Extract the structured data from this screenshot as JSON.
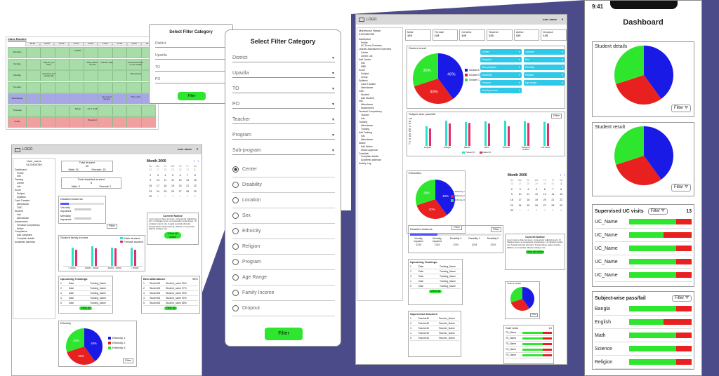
{
  "theme": {
    "purple": "#4b4b8a",
    "green": "#2ee62e",
    "red": "#e82020",
    "blue": "#1a1ae6",
    "teal": "#2ee0d0",
    "pink": "#e0306a"
  },
  "schedule": {
    "title": "Class Routine",
    "times": [
      "08:00",
      "09:00",
      "10:00",
      "11:00",
      "12:00",
      "13:00",
      "14:00",
      "15:00",
      "16:00"
    ],
    "days": [
      "Saturday",
      "Sunday",
      "Monday",
      "Tuesday",
      "Wednesday",
      "Thursday",
      "Friday"
    ],
    "events": [
      "Play as you learn",
      "Overview and systematic",
      "Upazila",
      "Play makes normal",
      "Outdoor play",
      "Social economic on the health",
      "Play-based",
      "Bangl",
      "Art & Craft",
      "Sport and games",
      "Play math",
      "Weekend"
    ]
  },
  "filter_small": {
    "title": "Select Filter Category",
    "fields": [
      "District",
      "Upazila",
      "TO",
      "PO"
    ],
    "button": "Filter"
  },
  "filter_large": {
    "title": "Select Filter Category",
    "selects": [
      "District",
      "Upazila",
      "TO",
      "PO",
      "Teacher",
      "Program",
      "Sub-program"
    ],
    "radios": [
      "Center",
      "Disability",
      "Location",
      "Sex",
      "Ethnicity",
      "Religion",
      "Program",
      "Age Range",
      "Family Income",
      "Dropout"
    ],
    "button": "Filter"
  },
  "dash1": {
    "logo": "LOGO",
    "user": "user name",
    "profile_name": "User_name",
    "profile_id": "0123456789",
    "nav": [
      "Dashboard",
      "Profile",
      "Info",
      "Training",
      "Center",
      "Info",
      "Score",
      "Subject",
      "Syllabus",
      "Cash Transfer",
      "Attendance",
      "CMC",
      "Student",
      "Info",
      "Attendance",
      "Assessment",
      "Terminal Competency",
      "Notice",
      "Compliance",
      "Add complaint",
      "Complain details",
      "Academic calendar"
    ],
    "total_student_label": "Total student",
    "total_student": "30",
    "male": "Male 15",
    "female": "Female: 15",
    "disabled_label": "Total disabled student",
    "disabled_total": "5",
    "disabled_male": "Male 3",
    "disabled_female": "Female 2",
    "calendar_month": "Month 2000",
    "days": [
      "Su",
      "Mo",
      "Tu",
      "We",
      "Th",
      "Fr",
      "Sa"
    ],
    "dates": [
      "26",
      "27",
      "28",
      "29",
      "30",
      "31",
      "1",
      "2",
      "3",
      "4",
      "5",
      "6",
      "7",
      "8",
      "9",
      "10",
      "11",
      "12",
      "13",
      "14",
      "15",
      "16",
      "17",
      "18",
      "19",
      "20",
      "21",
      "22",
      "23",
      "24",
      "25",
      "26",
      "27",
      "28",
      "29",
      "30",
      "1",
      "2",
      "3",
      "4",
      "5",
      "6"
    ],
    "disabled_students": "Disabled students",
    "visually_impaired": "Visually impaired",
    "mentally_impaired": "Mentally impaired",
    "family_income": "Student family income",
    "legend_male": "Male student",
    "legend_female": "Female student",
    "income_cats": [
      "< 10000",
      "10000 - 30000",
      "30000 - 50000",
      "> 50000"
    ],
    "notice_title": "Current Notice",
    "notice_text": "Lorem ipsum dolor sit amet, consectetur adipiscing elit. Ut tristique lorem a consectetur scelerisque. Ut volutpat mauris nisi, feugiat suscipit pharetra. Suspendisse sapien lacinia, efficitur eu imperdiet. Mauris tristique nisi.",
    "view_all": "View all notice",
    "trainings_title": "Upcoming Trainings",
    "training_rows": [
      [
        "1",
        "Date",
        "Training_Name"
      ],
      [
        "2",
        "Date",
        "Training_Name"
      ],
      [
        "3",
        "Date",
        "Training_Name"
      ],
      [
        "4",
        "Date",
        "Training_Name"
      ],
      [
        "5",
        "Date",
        "Training_Name"
      ]
    ],
    "view": "View all",
    "attendance_title": "Best Attendance",
    "attendance_pct": "98%",
    "attendance_rows": [
      [
        "1",
        "StudentID",
        "Student_name",
        "99%"
      ],
      [
        "2",
        "StudentID",
        "Student_name",
        "97%"
      ],
      [
        "3",
        "StudentID",
        "Student_name",
        "95%"
      ],
      [
        "4",
        "StudentID",
        "Student_name",
        "90%"
      ],
      [
        "5",
        "StudentID",
        "Student_name",
        "88%"
      ]
    ],
    "ethnicity_title": "Ethnicity",
    "eth_labels": [
      "Ethnicity 1",
      "Ethnicity 2",
      "Ethnicity 3"
    ],
    "pie_pct": [
      "40%",
      "30%",
      "30%"
    ],
    "filter": "Filter"
  },
  "dash2": {
    "logo": "LOGO",
    "user": "user name",
    "profile_name": "Mahmudul Hasan",
    "profile_id": "0123456789",
    "nav": [
      "Dashboard",
      "Profile",
      "UC Score Overview",
      "Learner Assessment Overview",
      "Center",
      "Center List",
      "Add Center",
      "Info",
      "MBE",
      "Score",
      "Subject",
      "Group",
      "Syllabus",
      "Cash Transfer",
      "Attendance",
      "CMC",
      "Student",
      "Add Student",
      "Info",
      "Attendance",
      "Assessment",
      "Terminal Competency",
      "Teacher",
      "Info",
      "Training",
      "Attendance",
      "Training",
      "Add Training",
      "Info",
      "Attendance",
      "Notice",
      "Add Notice",
      "Notice Approval",
      "Complain",
      "Complain details",
      "Academic calendar",
      "Activity Log"
    ],
    "stats": [
      [
        "Male",
        "123"
      ],
      [
        "Female",
        "123"
      ],
      [
        "Centers",
        "123"
      ],
      [
        "Teacher",
        "123"
      ],
      [
        "Active",
        "123"
      ],
      [
        "Dropout",
        "123"
      ]
    ],
    "student_result": "Student result",
    "grades": [
      "Grade A",
      "Grade B",
      "Grade C"
    ],
    "pie_pct": [
      "40%",
      "30%",
      "30%"
    ],
    "filter_chips": [
      "Center",
      "Location",
      "Program",
      "Sex",
      "Sub-program",
      "Ethnicity",
      "Disability",
      "Religion",
      "Dropout",
      "Age range",
      "Family income"
    ],
    "subject_chart_title": "Subject wise pass/fail",
    "subjects": [
      "English",
      "Bangla",
      "Maths",
      "BGS",
      "Science",
      "Religious Studies",
      "Life Skills"
    ],
    "legend_pass": "Passed %",
    "legend_fail": "Failed %",
    "yticks": [
      "100",
      "90",
      "80",
      "70",
      "60",
      "50",
      "40",
      "30",
      "20",
      "10",
      "0"
    ],
    "ethnicities": "Ethnicities",
    "eth_labels": [
      "Ethnicity 1",
      "Ethnicity 2",
      "Ethnicity 3"
    ],
    "calendar_month": "Month 2000",
    "days": [
      "Su",
      "Mo",
      "Tu",
      "We",
      "Th",
      "Fr",
      "Sa"
    ],
    "dates": [
      "26",
      "27",
      "28",
      "29",
      "30",
      "31",
      "1",
      "2",
      "3",
      "4",
      "5",
      "6",
      "7",
      "8",
      "9",
      "10",
      "11",
      "12",
      "13",
      "14",
      "15",
      "16",
      "17",
      "18",
      "19",
      "20",
      "21",
      "22",
      "23",
      "24",
      "25",
      "26",
      "27",
      "28",
      "29",
      "30",
      "1",
      "2",
      "3",
      "4",
      "5",
      "6"
    ],
    "disabled_students": "Disabled students",
    "disability_cols": [
      "Visually impaired",
      "Mentally impaired",
      "Disability 3",
      "Disability 4",
      "Disability 5"
    ],
    "disability_vals": [
      "1234",
      "1234",
      "1234",
      "1234",
      "1234"
    ],
    "notice_title": "Current Notice",
    "notice_text": "Lorem ipsum dolor sit amet, consectetur adipiscing elit. Ut tristique lorem a consectetur scelerisque. Ut volutpat mauris nisi, feugiat suscipit pharetra. Suspendisse sapien lacinia, efficitur eu imperdiet. Mauris tristique nisi.",
    "view_all": "View all notice",
    "trainings_title": "Upcoming Trainings",
    "training_rows": [
      [
        "1",
        "Date",
        "Training_Name"
      ],
      [
        "2",
        "Date",
        "Training_Name"
      ],
      [
        "3",
        "Date",
        "Training_Name"
      ],
      [
        "4",
        "Date",
        "Training_Name"
      ],
      [
        "5",
        "Date",
        "Training_Name"
      ]
    ],
    "view": "View all",
    "supervised_title": "Supervised teachers",
    "supervised_rows": [
      [
        "1",
        "TeacherID",
        "Teacher_Name"
      ],
      [
        "2",
        "TeacherID",
        "Teacher_Name"
      ],
      [
        "3",
        "TeacherID",
        "Teacher_Name"
      ],
      [
        "4",
        "TeacherID",
        "Teacher_Name"
      ],
      [
        "5",
        "TeacherID",
        "Teacher_Name"
      ]
    ],
    "student_details": "Student details",
    "staff_visits": "Staff visits",
    "staff_count": "13",
    "staff_rows": [
      "TS_Name",
      "TS_Name",
      "TS_Name",
      "TS_Name",
      "TS_Name"
    ],
    "filter": "Filter"
  },
  "mobile": {
    "time": "9:41",
    "title": "Dashboard",
    "student_details": "Student details",
    "student_result": "Student result",
    "filter": "Filter",
    "uc_title": "Supervised UC visits",
    "uc_count": "13",
    "uc_rows": [
      [
        "UC_Name",
        0.75
      ],
      [
        "UC_Name",
        0.55
      ],
      [
        "UC_Name",
        0.75
      ],
      [
        "UC_Name",
        0.75
      ],
      [
        "UC_Name",
        0.75
      ]
    ],
    "subj_title": "Subject-wise pass/fail",
    "subj_rows": [
      [
        "Bangla",
        0.75
      ],
      [
        "English",
        0.55
      ],
      [
        "Math",
        0.75
      ],
      [
        "Science",
        0.75
      ],
      [
        "Religion",
        0.75
      ]
    ]
  }
}
